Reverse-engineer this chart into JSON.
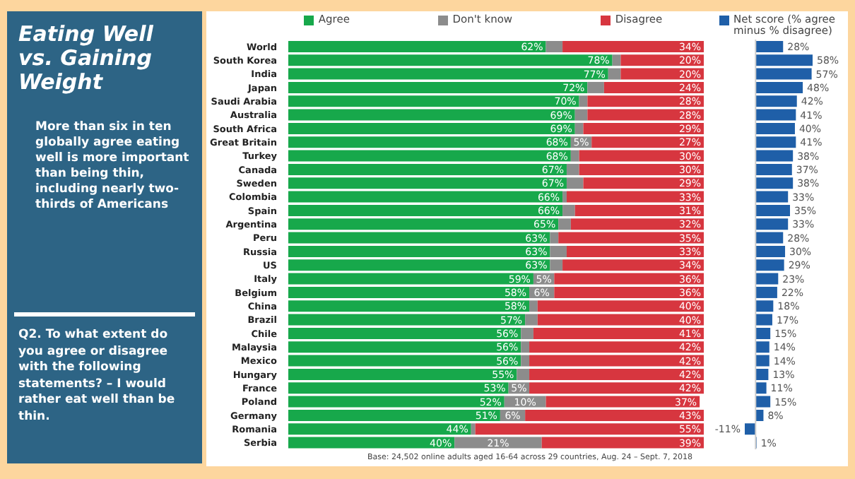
{
  "chart_data": [
    {
      "type": "bar",
      "orientation": "horizontal",
      "stacked": true,
      "title": "Eating Well vs. Gaining Weight",
      "annotations": [
        "More than six in ten globally agree eating well is more important than being thin, including nearly two-thirds of Americans",
        "Q2. To what extent do you agree or disagree with the following statements? – I would rather eat well than be thin.",
        "Base: 24,502 online adults aged 16-64 across 29 countries, Aug. 24 – Sept. 7, 2018"
      ],
      "legend": "top",
      "tick_labels": "y",
      "categories": [
        "World",
        "South Korea",
        "India",
        "Japan",
        "Saudi Arabia",
        "Australia",
        "South Africa",
        "Great Britain",
        "Turkey",
        "Canada",
        "Sweden",
        "Colombia",
        "Spain",
        "Argentina",
        "Peru",
        "Russia",
        "US",
        "Italy",
        "Belgium",
        "China",
        "Brazil",
        "Chile",
        "Malaysia",
        "Mexico",
        "Hungary",
        "France",
        "Poland",
        "Germany",
        "Romania",
        "Serbia"
      ],
      "series": [
        {
          "name": "Agree",
          "color": "#17a84b",
          "values": [
            62,
            78,
            77,
            72,
            70,
            69,
            69,
            68,
            68,
            67,
            67,
            66,
            66,
            65,
            63,
            63,
            63,
            59,
            58,
            58,
            57,
            56,
            56,
            56,
            55,
            53,
            52,
            51,
            44,
            40
          ],
          "value_labels": [
            "62%",
            "78%",
            "77%",
            "72%",
            "70%",
            "69%",
            "69%",
            "68%",
            "68%",
            "67%",
            "67%",
            "66%",
            "66%",
            "65%",
            "63%",
            "63%",
            "63%",
            "59%",
            "58%",
            "58%",
            "57%",
            "56%",
            "56%",
            "56%",
            "55%",
            "53%",
            "52%",
            "51%",
            "44%",
            "40%"
          ]
        },
        {
          "name": "Don't know",
          "color": "#8c8c8c",
          "values": [
            4,
            2,
            3,
            4,
            2,
            3,
            2,
            5,
            2,
            3,
            4,
            1,
            3,
            3,
            2,
            4,
            3,
            5,
            6,
            2,
            3,
            3,
            2,
            2,
            3,
            5,
            10,
            6,
            1,
            21
          ],
          "value_labels": [
            null,
            null,
            null,
            null,
            null,
            null,
            null,
            "5%",
            null,
            null,
            null,
            null,
            null,
            null,
            null,
            null,
            null,
            "5%",
            "6%",
            null,
            null,
            null,
            null,
            null,
            null,
            "5%",
            "10%",
            "6%",
            null,
            "21%"
          ]
        },
        {
          "name": "Disagree",
          "color": "#d7363f",
          "values": [
            34,
            20,
            20,
            24,
            28,
            28,
            29,
            27,
            30,
            30,
            29,
            33,
            31,
            32,
            35,
            33,
            34,
            36,
            36,
            40,
            40,
            41,
            42,
            42,
            42,
            42,
            37,
            43,
            55,
            39
          ],
          "value_labels": [
            "34%",
            "20%",
            "20%",
            "24%",
            "28%",
            "28%",
            "29%",
            "27%",
            "30%",
            "30%",
            "29%",
            "33%",
            "31%",
            "32%",
            "35%",
            "33%",
            "34%",
            "36%",
            "36%",
            "40%",
            "40%",
            "41%",
            "42%",
            "42%",
            "42%",
            "42%",
            "37%",
            "43%",
            "55%",
            "39%"
          ]
        }
      ]
    },
    {
      "type": "bar",
      "orientation": "horizontal",
      "legend": "top",
      "tick_labels": false,
      "series": [
        {
          "name": "Net score (% agree minus % disagree)",
          "color": "#1f5fa8",
          "values": [
            28,
            58,
            57,
            48,
            42,
            41,
            40,
            41,
            38,
            37,
            38,
            33,
            35,
            33,
            28,
            30,
            29,
            23,
            22,
            18,
            17,
            15,
            14,
            14,
            13,
            11,
            15,
            8,
            -11,
            1
          ],
          "value_labels": [
            "28%",
            "58%",
            "57%",
            "48%",
            "42%",
            "41%",
            "40%",
            "41%",
            "38%",
            "37%",
            "38%",
            "33%",
            "35%",
            "33%",
            "28%",
            "30%",
            "29%",
            "23%",
            "22%",
            "18%",
            "17%",
            "15%",
            "14%",
            "14%",
            "13%",
            "11%",
            "15%",
            "8%",
            "-11%",
            "1%"
          ]
        }
      ]
    }
  ]
}
